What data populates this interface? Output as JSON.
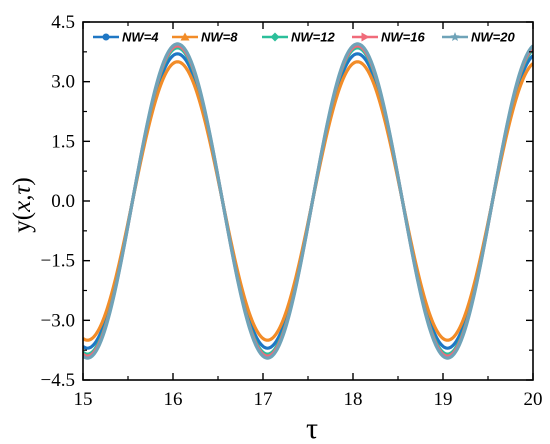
{
  "chart_data": {
    "type": "line",
    "xlabel": "τ",
    "ylabel_main": "y(",
    "ylabel_vars": "x,τ",
    "ylabel_close": ")",
    "xlim": [
      15,
      20
    ],
    "ylim": [
      -4.5,
      4.5
    ],
    "xticks": [
      15,
      16,
      17,
      18,
      19,
      20
    ],
    "xtick_labels": [
      "15",
      "16",
      "17",
      "18",
      "19",
      "20"
    ],
    "yticks": [
      -4.5,
      -3.0,
      -1.5,
      0.0,
      1.5,
      3.0,
      4.5
    ],
    "ytick_labels": [
      "−4.5",
      "−3.0",
      "−1.5",
      "0.0",
      "1.5",
      "3.0",
      "4.5"
    ],
    "grid": false,
    "legend_position": "top",
    "series": [
      {
        "name": "NW=4",
        "color": "#1f77c4",
        "marker": "circle",
        "amplitude": 3.7,
        "period": 2.0,
        "peak_at": 16.05
      },
      {
        "name": "NW=8",
        "color": "#f28c28",
        "marker": "triangle-up",
        "amplitude": 3.5,
        "period": 2.0,
        "peak_at": 16.05
      },
      {
        "name": "NW=12",
        "color": "#2bbf9a",
        "marker": "diamond",
        "amplitude": 3.85,
        "period": 2.0,
        "peak_at": 16.05
      },
      {
        "name": "NW=16",
        "color": "#f06b7a",
        "marker": "triangle-right",
        "amplitude": 3.9,
        "period": 2.0,
        "peak_at": 16.05
      },
      {
        "name": "NW=20",
        "color": "#6fa3b8",
        "marker": "star",
        "amplitude": 3.95,
        "period": 2.0,
        "peak_at": 16.05
      }
    ]
  }
}
